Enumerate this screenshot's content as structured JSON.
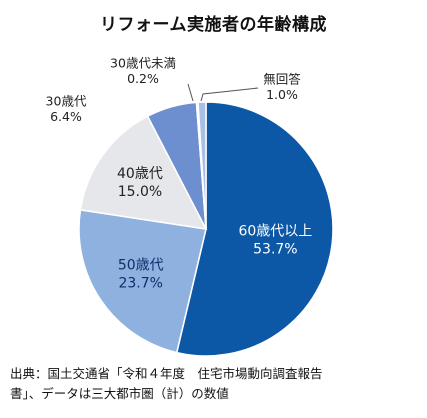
{
  "chart_data": {
    "type": "pie",
    "title": "リフォーム実施者の年齢構成",
    "slices": [
      {
        "name": "60歳代以上",
        "value": 53.7,
        "value_label": "53.7%",
        "color": "#0d58a6"
      },
      {
        "name": "50歳代",
        "value": 23.7,
        "value_label": "23.7%",
        "color": "#8eb1e0"
      },
      {
        "name": "40歳代",
        "value": 15.0,
        "value_label": "15.0%",
        "color": "#e6e7ea"
      },
      {
        "name": "30歳代",
        "value": 6.4,
        "value_label": "6.4%",
        "color": "#6e8fcf"
      },
      {
        "name": "30歳代未満",
        "value": 0.2,
        "value_label": "0.2%",
        "color": "#3a5fa8"
      },
      {
        "name": "無回答",
        "value": 1.0,
        "value_label": "1.0%",
        "color": "#a8c0e6"
      }
    ]
  },
  "source": {
    "line1": "出典：国土交通省「令和４年度　住宅市場動向調査報告",
    "line2": "書」、データは三大都市圏（計）の数値"
  }
}
